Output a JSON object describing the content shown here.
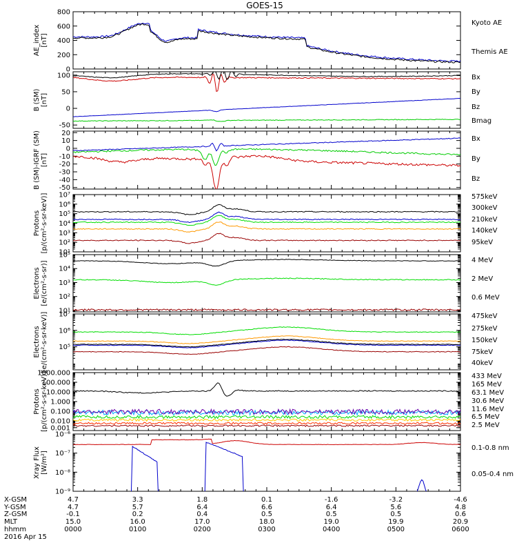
{
  "title": "GOES-15",
  "chart_data": [
    {
      "type": "line",
      "ylabel": "AE_index\n[nT]",
      "ylim": [
        0,
        800
      ],
      "yticks": [
        {
          "v": 800,
          "t": "800"
        },
        {
          "v": 600,
          "t": "600"
        },
        {
          "v": 400,
          "t": "400"
        },
        {
          "v": 200,
          "t": "200"
        },
        {
          "v": 0,
          "t": "0"
        }
      ],
      "series": [
        {
          "name": "Kyoto AE",
          "color": "#0000cc",
          "shape": "ae",
          "noise": 12,
          "offset": 0
        },
        {
          "name": "Themis AE",
          "color": "#000000",
          "shape": "ae",
          "noise": 12,
          "offset": -15
        }
      ]
    },
    {
      "type": "line",
      "ylabel": "B (SM)\n[nT]",
      "ylim": [
        -60,
        110
      ],
      "yticks": [
        {
          "v": 100,
          "t": "100"
        },
        {
          "v": 50,
          "t": "50"
        },
        {
          "v": 0,
          "t": "0"
        },
        {
          "v": -50,
          "t": "-50"
        }
      ],
      "series": [
        {
          "name": "Bx",
          "color": "#0000cc",
          "shape": "bx",
          "noise": 0.5
        },
        {
          "name": "By",
          "color": "#00cc00",
          "shape": "by",
          "noise": 1
        },
        {
          "name": "Bz",
          "color": "#cc0000",
          "shape": "bz",
          "noise": 1.5
        },
        {
          "name": "Bmag",
          "color": "#000000",
          "shape": "bmag",
          "noise": 1
        }
      ]
    },
    {
      "type": "line",
      "ylabel": "B (SM)-IGRF (SM)\n[nT]",
      "ylim": [
        -52,
        22
      ],
      "yticks": [
        {
          "v": 20,
          "t": "20"
        },
        {
          "v": 10,
          "t": "10"
        },
        {
          "v": 0,
          "t": "0"
        },
        {
          "v": -10,
          "t": "-10"
        },
        {
          "v": -20,
          "t": "-20"
        },
        {
          "v": -30,
          "t": "-30"
        },
        {
          "v": -40,
          "t": "-40"
        },
        {
          "v": -50,
          "t": "-50"
        }
      ],
      "series": [
        {
          "name": "Bx",
          "color": "#0000cc",
          "shape": "dbx",
          "noise": 0.5
        },
        {
          "name": "By",
          "color": "#00cc00",
          "shape": "dby",
          "noise": 1
        },
        {
          "name": "Bz",
          "color": "#cc0000",
          "shape": "dbz",
          "noise": 1.5
        }
      ]
    },
    {
      "type": "line",
      "log": true,
      "ylabel": "Protons\n[p/(cm²-s-sr-keV)]",
      "ylim": [
        1,
        7
      ],
      "yticks": [
        {
          "v": 7,
          "t": "10⁷"
        },
        {
          "v": 6,
          "t": "10⁶"
        },
        {
          "v": 5,
          "t": "10⁵"
        },
        {
          "v": 4,
          "t": "10⁴"
        },
        {
          "v": 3,
          "t": "10³"
        },
        {
          "v": 2,
          "t": "10²"
        },
        {
          "v": 1,
          "t": "10¹"
        }
      ],
      "series": [
        {
          "name": "575keV",
          "color": "#000000",
          "shape": "pr",
          "base": 5.2,
          "noise": 0.05
        },
        {
          "name": "300keV",
          "color": "#ff9900",
          "shape": "pr",
          "base": 3.4,
          "noise": 0.05
        },
        {
          "name": "210keV",
          "color": "#00dd00",
          "shape": "pr",
          "base": 4.1,
          "noise": 0.05
        },
        {
          "name": "140keV",
          "color": "#0000cc",
          "shape": "pr",
          "base": 4.4,
          "noise": 0.05
        },
        {
          "name": "95keV",
          "color": "#990000",
          "shape": "pr",
          "base": 2.2,
          "noise": 0.05
        }
      ]
    },
    {
      "type": "line",
      "log": true,
      "ylabel": "Electrons\n[e/(cm²-s-sr)]",
      "ylim": [
        0.9,
        5
      ],
      "yticks": [
        {
          "v": 5,
          "t": "10⁵"
        },
        {
          "v": 4,
          "t": "10⁴"
        },
        {
          "v": 3,
          "t": "10³"
        },
        {
          "v": 2,
          "t": "10²"
        },
        {
          "v": 1,
          "t": "10¹"
        }
      ],
      "series": [
        {
          "name": "4 MeV",
          "color": "#990000",
          "shape": "flat",
          "base": 1.05,
          "noise": 0.06
        },
        {
          "name": "2 MeV",
          "color": "#00dd00",
          "shape": "el",
          "base": 3.2,
          "noise": 0.03
        },
        {
          "name": "0.6 MeV",
          "color": "#000000",
          "shape": "el",
          "base": 4.55,
          "noise": 0.02
        }
      ]
    },
    {
      "type": "line",
      "log": true,
      "ylabel": "Electrons\n[e/(cm²-s-sr-keV)]",
      "ylim": [
        3.6,
        7
      ],
      "yticks": [
        {
          "v": 7,
          "t": "10⁷"
        },
        {
          "v": 6,
          "t": "10⁶"
        },
        {
          "v": 5,
          "t": "10⁵"
        }
      ],
      "series": [
        {
          "name": "475keV",
          "color": "#990000",
          "shape": "el2",
          "base": 4.7,
          "noise": 0.02
        },
        {
          "name": "275keV",
          "color": "#ff9900",
          "shape": "el2",
          "base": 5.35,
          "noise": 0.02
        },
        {
          "name": "150keV",
          "color": "#00dd00",
          "shape": "el2",
          "base": 5.9,
          "noise": 0.02
        },
        {
          "name": "75keV",
          "color": "#0000cc",
          "shape": "el2",
          "base": 5.1,
          "noise": 0.02
        },
        {
          "name": "40keV",
          "color": "#000000",
          "shape": "el2",
          "base": 5.15,
          "noise": 0.02
        }
      ]
    },
    {
      "type": "line",
      "log": true,
      "ylabel": "Protons\n[p/(cm²-s-sr-keV)]",
      "ylim": [
        -3,
        3
      ],
      "yticks": [
        {
          "v": 3,
          "t": "1000.000"
        },
        {
          "v": 2,
          "t": "100.000"
        },
        {
          "v": 1,
          "t": "10.000"
        },
        {
          "v": 0,
          "t": "1.000"
        },
        {
          "v": -1,
          "t": "0.100"
        },
        {
          "v": -2,
          "t": "0.010"
        },
        {
          "v": -2.7,
          "t": "0.001"
        }
      ],
      "series": [
        {
          "name": "433 MeV",
          "color": "#990000",
          "shape": "flat",
          "base": -2.5,
          "noise": 0.08
        },
        {
          "name": "165 MeV",
          "color": "#ff3300",
          "shape": "flat",
          "base": -2.25,
          "noise": 0.1
        },
        {
          "name": "63.1 MeV",
          "color": "#ffcc00",
          "shape": "flat",
          "base": -1.9,
          "noise": 0.12
        },
        {
          "name": "30.6 MeV",
          "color": "#00dd00",
          "shape": "flat",
          "base": -1.6,
          "noise": 0.15
        },
        {
          "name": "11.6 MeV",
          "color": "#00aaff",
          "shape": "flat",
          "base": -1.15,
          "noise": 0.25
        },
        {
          "name": "6.5 MeV",
          "color": "#6600aa",
          "shape": "flat",
          "base": -1.05,
          "noise": 0.25
        },
        {
          "name": "2.5 MeV",
          "color": "#000000",
          "shape": "p2",
          "base": 1.1,
          "noise": 0.05
        }
      ]
    },
    {
      "type": "line",
      "log": true,
      "ylabel": "Xray Flux\n[W/m²]",
      "ylim": [
        -9,
        -6
      ],
      "yticks": [
        {
          "v": -6,
          "t": "10⁻⁶"
        },
        {
          "v": -7,
          "t": "10⁻⁷"
        },
        {
          "v": -8,
          "t": "10⁻⁸"
        },
        {
          "v": -9,
          "t": "10⁻⁹"
        }
      ],
      "series": [
        {
          "name": "0.1-0.8 nm",
          "color": "#cc0000",
          "shape": "xr",
          "base": -6.5,
          "noise": 0.01
        },
        {
          "name": "0.05-0.4 nm",
          "color": "#0000cc",
          "shape": "xb",
          "base": -9.2,
          "noise": 0.02
        }
      ]
    }
  ],
  "orbit": {
    "rows": [
      {
        "label": "X-GSM",
        "values": [
          "4.7",
          "3.3",
          "1.8",
          "0.1",
          "-1.6",
          "-3.2",
          "-4.6"
        ]
      },
      {
        "label": "Y-GSM",
        "values": [
          "4.7",
          "5.7",
          "6.4",
          "6.6",
          "6.4",
          "5.6",
          "4.8"
        ]
      },
      {
        "label": "Z-GSM",
        "values": [
          "-0.1",
          "0.2",
          "0.4",
          "0.5",
          "0.5",
          "0.5",
          "0.6"
        ]
      },
      {
        "label": "MLT",
        "values": [
          "15.0",
          "16.0",
          "17.0",
          "18.0",
          "19.0",
          "19.9",
          "20.9"
        ]
      },
      {
        "label": "hhmm",
        "values": [
          "0000",
          "0100",
          "0200",
          "0300",
          "0400",
          "0500",
          "0600"
        ]
      }
    ],
    "date": "2016 Apr 15"
  },
  "colors": {
    "axis": "#000000",
    "background": "#ffffff"
  }
}
